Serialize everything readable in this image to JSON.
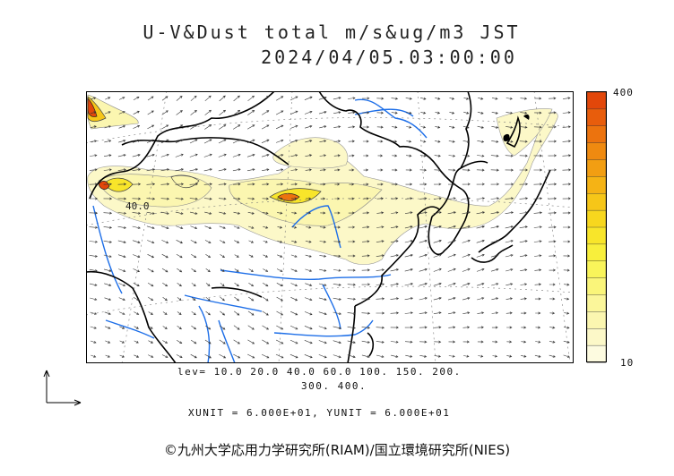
{
  "header": {
    "title": "U-V&Dust total m/s&ug/m3 JST",
    "datetime": "2024/04/05.03:00:00"
  },
  "colorbar": {
    "max_label": "400",
    "min_label": "10",
    "colors": [
      "#fdfbe0",
      "#fcf8c8",
      "#fbf6b0",
      "#fbf69a",
      "#faf57a",
      "#f9f45a",
      "#f8ef3c",
      "#f8e52a",
      "#f7d71e",
      "#f6c618",
      "#f5b315",
      "#f29e12",
      "#ef8a10",
      "#ec730e",
      "#e85d0c",
      "#e2470a"
    ]
  },
  "legend": {
    "levels_line1": "lev= 10.0 20.0 40.0 60.0 100. 150. 200.",
    "levels_line2": "300. 400.",
    "unit_text": "XUNIT = 6.000E+01, YUNIT = 6.000E+01"
  },
  "map": {
    "contour_label": "40.0",
    "colors": {
      "coast": "#000000",
      "river": "#1e6fe8",
      "grid": "#7a7a7a",
      "dust_low": "#fbf6b0",
      "dust_mid": "#f7d71e",
      "dust_high": "#e85d0c"
    }
  },
  "footer": {
    "copyright": "©九州大学応用力学研究所(RIAM)/国立環境研究所(NIES)"
  }
}
